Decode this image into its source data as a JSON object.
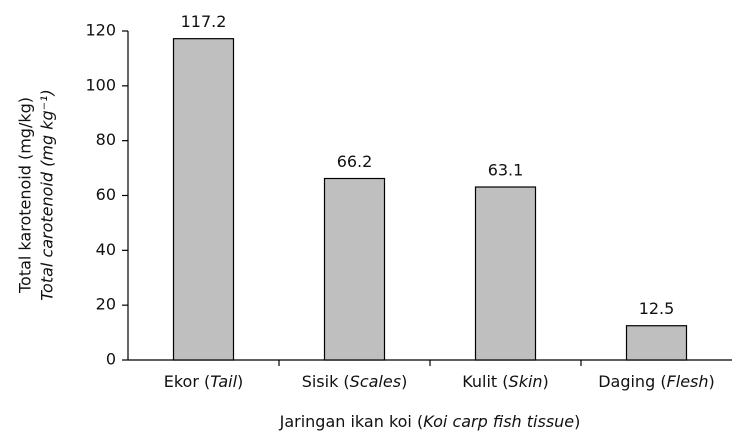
{
  "chart_data": {
    "type": "bar",
    "categories": [
      "Ekor (Tail)",
      "Sisik (Scales)",
      "Kulit (Skin)",
      "Daging (Flesh)"
    ],
    "values": [
      117.2,
      66.2,
      63.1,
      12.5
    ],
    "color": "#bfbfbf",
    "ylim": [
      0,
      120
    ],
    "yticks": [
      0,
      20,
      40,
      60,
      80,
      100,
      120
    ],
    "y_label": [
      "Total karotenoid (mg/kg)",
      "Total carotenoid (mg kg⁻¹)"
    ],
    "x_label": "Jaringan ikan koi (Koi carp fish tissue)",
    "grid": false
  }
}
